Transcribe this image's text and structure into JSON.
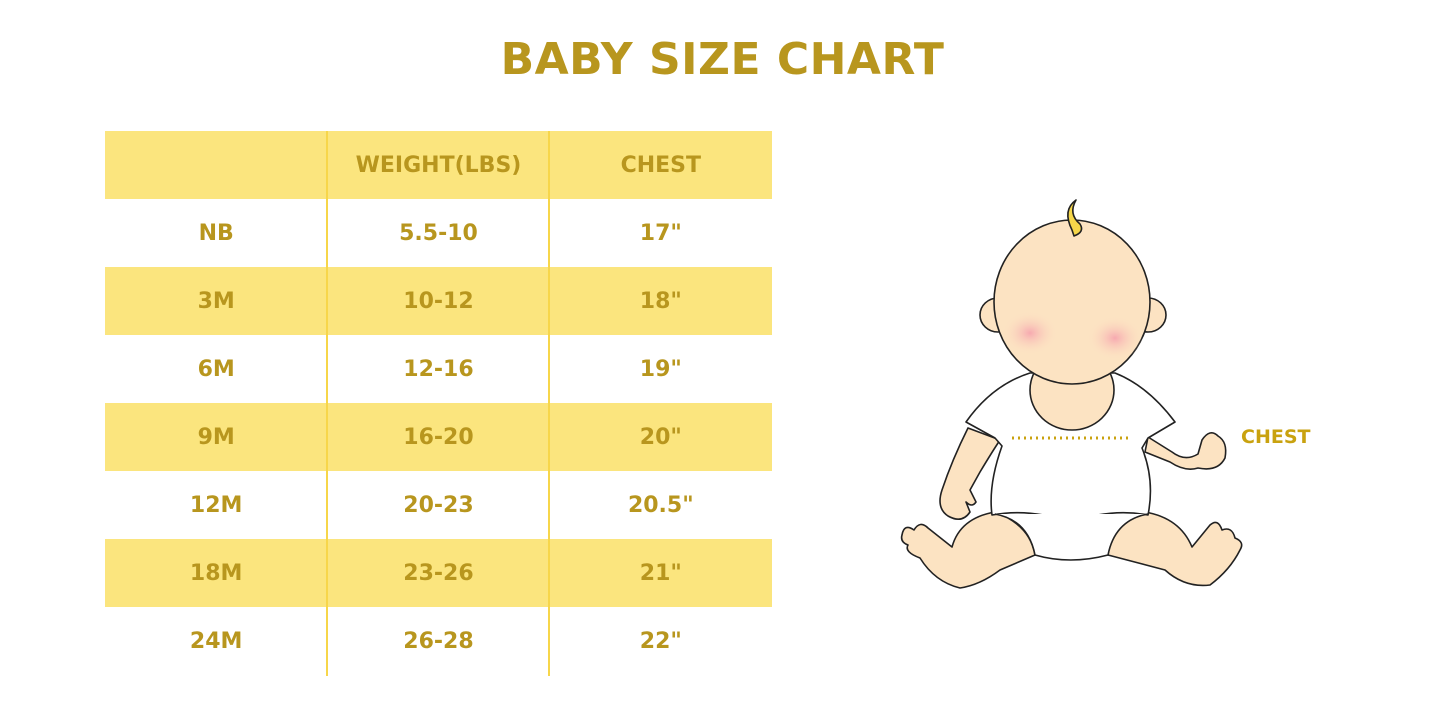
{
  "title": "BABY SIZE CHART",
  "table": {
    "headers": [
      "",
      "WEIGHT(LBS)",
      "CHEST"
    ],
    "rows": [
      [
        "NB",
        "5.5-10",
        "17\""
      ],
      [
        "3M",
        "10-12",
        "18\""
      ],
      [
        "6M",
        "12-16",
        "19\""
      ],
      [
        "9M",
        "16-20",
        "20\""
      ],
      [
        "12M",
        "20-23",
        "20.5\""
      ],
      [
        "18M",
        "23-26",
        "21\""
      ],
      [
        "24M",
        "26-28",
        "22\""
      ]
    ]
  },
  "illustration": {
    "chest_label": "CHEST"
  },
  "colors": {
    "text": "#B8961E",
    "stripe": "#FBE57E",
    "divider": "#F7D64A"
  }
}
